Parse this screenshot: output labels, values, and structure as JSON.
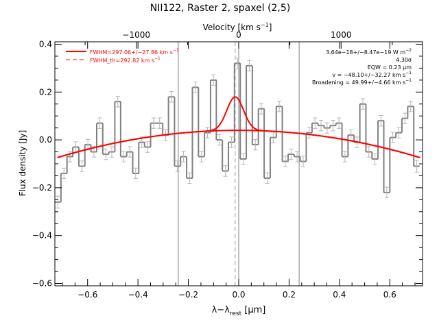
{
  "chart_data": {
    "type": "line",
    "title": "NII122, Raster 2, spaxel (2,5)",
    "xlabel": "λ−λ",
    "xlabel_sub": "rest",
    "xlabel_unit": " [μm]",
    "ylabel": "Flux density [Jy]",
    "top_axis_label": "Velocity [km s",
    "top_axis_label_sup": "−1",
    "top_axis_label_end": "]",
    "xlim": [
      -0.73,
      0.73
    ],
    "ylim": [
      -0.61,
      0.41
    ],
    "x_ticks": [
      "−0.6",
      "−0.4",
      "−0.2",
      "0.0",
      "0.2",
      "0.4",
      "0.6"
    ],
    "x_tick_values": [
      -0.6,
      -0.4,
      -0.2,
      0.0,
      0.2,
      0.4,
      0.6
    ],
    "y_ticks": [
      "−0.6",
      "−0.4",
      "−0.2",
      "0.0",
      "0.2",
      "0.4"
    ],
    "y_tick_values": [
      -0.6,
      -0.4,
      -0.2,
      0.0,
      0.2,
      0.4
    ],
    "top_ticks": [
      "−1000",
      "0",
      "1000"
    ],
    "top_tick_values": [
      -1000,
      0,
      1000
    ],
    "legend": {
      "position": "top-left",
      "entries": [
        {
          "label": "FWHM=297.06+/−27.86 km s",
          "sup": "−1",
          "style": "solid",
          "color": "#ff0000"
        },
        {
          "label": "FWHM_th=292.82 km s",
          "sup": "−1",
          "style": "dashed",
          "color": "#ff0000"
        }
      ]
    },
    "annotations": {
      "position": "top-right",
      "lines": [
        {
          "text": "3.64e−18+/−8.47e−19 W m",
          "sup": "−2"
        },
        {
          "text": "4.30σ",
          "sup": ""
        },
        {
          "text": "EQW = 0.23 μm",
          "sup": ""
        },
        {
          "text": "v = −48.10+/−32.27 km s",
          "sup": "−1"
        },
        {
          "text": "Broadening = 49.99+/−4.66 km s",
          "sup": "−1"
        }
      ]
    },
    "vertical_lines": [
      {
        "x": -0.24,
        "style": "solid"
      },
      {
        "x": 0.0,
        "style": "solid"
      },
      {
        "x": 0.24,
        "style": "solid"
      },
      {
        "x": -0.014,
        "style": "dashed"
      }
    ],
    "spectrum": {
      "name": "",
      "color": "#808080",
      "bin_width": 0.02375,
      "x": [
        -0.718,
        -0.694,
        -0.67,
        -0.647,
        -0.623,
        -0.599,
        -0.575,
        -0.552,
        -0.528,
        -0.504,
        -0.48,
        -0.457,
        -0.433,
        -0.409,
        -0.385,
        -0.362,
        -0.338,
        -0.314,
        -0.29,
        -0.267,
        -0.243,
        -0.219,
        -0.195,
        -0.172,
        -0.148,
        -0.124,
        -0.1,
        -0.077,
        -0.053,
        -0.029,
        -0.005,
        0.018,
        0.042,
        0.066,
        0.09,
        0.113,
        0.137,
        0.161,
        0.185,
        0.208,
        0.232,
        0.256,
        0.28,
        0.303,
        0.327,
        0.351,
        0.375,
        0.398,
        0.422,
        0.446,
        0.47,
        0.493,
        0.517,
        0.541,
        0.565,
        0.588,
        0.612,
        0.636,
        0.66,
        0.683,
        0.707
      ],
      "y": [
        -0.26,
        -0.14,
        -0.07,
        -0.03,
        -0.11,
        -0.02,
        -0.05,
        0.07,
        -0.06,
        -0.05,
        0.16,
        -0.07,
        -0.05,
        -0.14,
        -0.01,
        -0.03,
        0.07,
        0.07,
        0.02,
        0.18,
        -0.11,
        -0.07,
        -0.16,
        0.22,
        -0.07,
        0.03,
        0.25,
        0.0,
        -0.13,
        -0.01,
        0.32,
        -0.08,
        0.31,
        -0.02,
        0.13,
        -0.16,
        0.01,
        0.14,
        -0.09,
        -0.06,
        -0.07,
        -0.09,
        0.03,
        0.07,
        0.06,
        0.05,
        0.06,
        0.07,
        -0.07,
        0.02,
        -0.01,
        0.15,
        -0.05,
        -0.08,
        0.08,
        -0.22,
        0.01,
        0.03,
        0.09,
        0.14,
        -0.11
      ],
      "err": [
        0.025,
        0.022,
        0.022,
        0.022,
        0.022,
        0.022,
        0.022,
        0.022,
        0.022,
        0.022,
        0.022,
        0.022,
        0.022,
        0.022,
        0.022,
        0.022,
        0.022,
        0.022,
        0.022,
        0.022,
        0.022,
        0.022,
        0.022,
        0.022,
        0.022,
        0.022,
        0.022,
        0.022,
        0.022,
        0.022,
        0.022,
        0.022,
        0.022,
        0.022,
        0.022,
        0.022,
        0.022,
        0.022,
        0.022,
        0.022,
        0.022,
        0.022,
        0.022,
        0.022,
        0.022,
        0.022,
        0.022,
        0.022,
        0.022,
        0.022,
        0.022,
        0.022,
        0.022,
        0.022,
        0.022,
        0.022,
        0.022,
        0.022,
        0.022,
        0.022,
        0.025
      ]
    },
    "fit": {
      "color": "#ff0000",
      "baseline": {
        "a": 0.04,
        "b": 0.0,
        "c": -0.22
      },
      "gaussian": {
        "amp": 0.14,
        "center": -0.014,
        "sigma": 0.033
      }
    }
  }
}
